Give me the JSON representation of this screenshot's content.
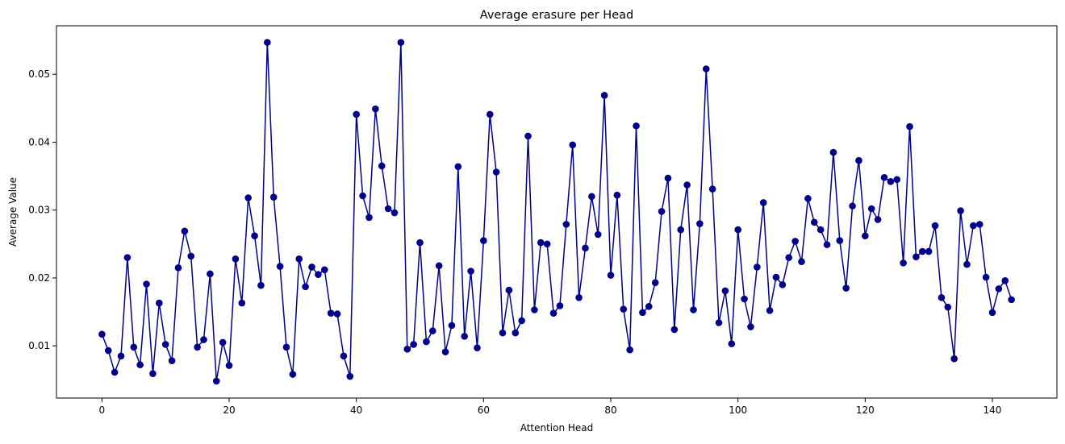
{
  "chart_data": {
    "type": "line",
    "title": "Average erasure per Head",
    "xlabel": "Attention Head",
    "ylabel": "Average Value",
    "xlim": [
      -7.15,
      150.15
    ],
    "ylim": [
      0.0023,
      0.05715
    ],
    "xticks": [
      0,
      20,
      40,
      60,
      80,
      100,
      120,
      140
    ],
    "yticks": [
      0.01,
      0.02,
      0.03,
      0.04,
      0.05
    ],
    "xtick_labels": [
      "0",
      "20",
      "40",
      "60",
      "80",
      "100",
      "120",
      "140"
    ],
    "ytick_labels": [
      "0.01",
      "0.02",
      "0.03",
      "0.04",
      "0.05"
    ],
    "grid": false,
    "marker": "circle",
    "color": "#00008b",
    "series": [
      {
        "x": [
          0,
          1,
          2,
          3,
          4,
          5,
          6,
          7,
          8,
          9,
          10,
          11,
          12,
          13,
          14,
          15,
          16,
          17,
          18,
          19,
          20,
          21,
          22,
          23,
          24,
          25,
          26,
          27,
          28,
          29,
          30,
          31,
          32,
          33,
          34,
          35,
          36,
          37,
          38,
          39,
          40,
          41,
          42,
          43,
          44,
          45,
          46,
          47,
          48,
          49,
          50,
          51,
          52,
          53,
          54,
          55,
          56,
          57,
          58,
          59,
          60,
          61,
          62,
          63,
          64,
          65,
          66,
          67,
          68,
          69,
          70,
          71,
          72,
          73,
          74,
          75,
          76,
          77,
          78,
          79,
          80,
          81,
          82,
          83,
          84,
          85,
          86,
          87,
          88,
          89,
          90,
          91,
          92,
          93,
          94,
          95,
          96,
          97,
          98,
          99,
          100,
          101,
          102,
          103,
          104,
          105,
          106,
          107,
          108,
          109,
          110,
          111,
          112,
          113,
          114,
          115,
          116,
          117,
          118,
          119,
          120,
          121,
          122,
          123,
          124,
          125,
          126,
          127,
          128,
          129,
          130,
          131,
          132,
          133,
          134,
          135,
          136,
          137,
          138,
          139,
          140,
          141,
          142,
          143
        ],
        "values": [
          0.0117,
          0.0093,
          0.0061,
          0.0085,
          0.023,
          0.0098,
          0.0072,
          0.0191,
          0.0059,
          0.0163,
          0.0102,
          0.0078,
          0.0215,
          0.0269,
          0.0232,
          0.0098,
          0.0109,
          0.0206,
          0.0048,
          0.0105,
          0.0071,
          0.0228,
          0.0163,
          0.0318,
          0.0262,
          0.0189,
          0.0547,
          0.0319,
          0.0217,
          0.0098,
          0.0058,
          0.0228,
          0.0187,
          0.0216,
          0.0205,
          0.0212,
          0.0148,
          0.0147,
          0.0085,
          0.0055,
          0.0441,
          0.0321,
          0.0289,
          0.0449,
          0.0365,
          0.0302,
          0.0296,
          0.0547,
          0.0095,
          0.0102,
          0.0252,
          0.0106,
          0.0122,
          0.0218,
          0.0091,
          0.013,
          0.0364,
          0.0114,
          0.021,
          0.0097,
          0.0255,
          0.0441,
          0.0356,
          0.0119,
          0.0182,
          0.0119,
          0.0137,
          0.0409,
          0.0153,
          0.0252,
          0.025,
          0.0148,
          0.0159,
          0.0279,
          0.0396,
          0.0171,
          0.0244,
          0.032,
          0.0264,
          0.0469,
          0.0204,
          0.0322,
          0.0154,
          0.0094,
          0.0424,
          0.0149,
          0.0158,
          0.0193,
          0.0298,
          0.0347,
          0.0124,
          0.0271,
          0.0337,
          0.0153,
          0.028,
          0.0508,
          0.0331,
          0.0134,
          0.0181,
          0.0103,
          0.0271,
          0.0169,
          0.0128,
          0.0216,
          0.0311,
          0.0152,
          0.0201,
          0.019,
          0.023,
          0.0254,
          0.0224,
          0.0317,
          0.0282,
          0.0271,
          0.0249,
          0.0385,
          0.0255,
          0.0185,
          0.0306,
          0.0373,
          0.0262,
          0.0302,
          0.0286,
          0.0348,
          0.0342,
          0.0345,
          0.0222,
          0.0423,
          0.0231,
          0.0239,
          0.0239,
          0.0277,
          0.0171,
          0.0157,
          0.0081,
          0.0299,
          0.022,
          0.0277,
          0.0279,
          0.0201,
          0.0149,
          0.0184,
          0.0196,
          0.0168
        ]
      }
    ]
  }
}
